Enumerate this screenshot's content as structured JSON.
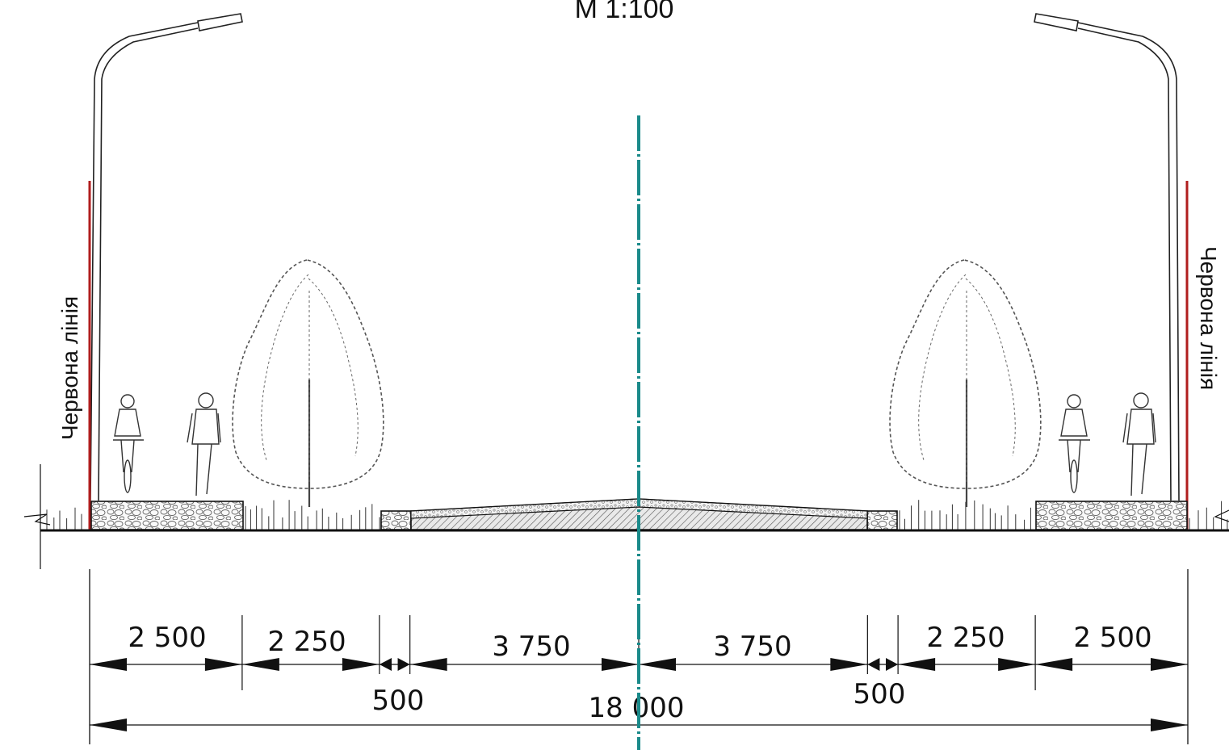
{
  "title": "М 1:100",
  "red_line_label": "Червона лінія",
  "colors": {
    "red_line": "#b01e1e",
    "axis": "#1a8a8a",
    "ink": "#111111",
    "tree": "#555555"
  },
  "dimensions": {
    "segments": [
      {
        "label": "2 500",
        "value": 2500
      },
      {
        "label": "2 250",
        "value": 2250
      },
      {
        "label": "500",
        "value": 500
      },
      {
        "label": "3 750",
        "value": 3750
      },
      {
        "label": "3 750",
        "value": 3750
      },
      {
        "label": "500",
        "value": 500
      },
      {
        "label": "2 250",
        "value": 2250
      },
      {
        "label": "2 500",
        "value": 2500
      }
    ],
    "total": {
      "label": "18 000",
      "value": 18000
    }
  }
}
